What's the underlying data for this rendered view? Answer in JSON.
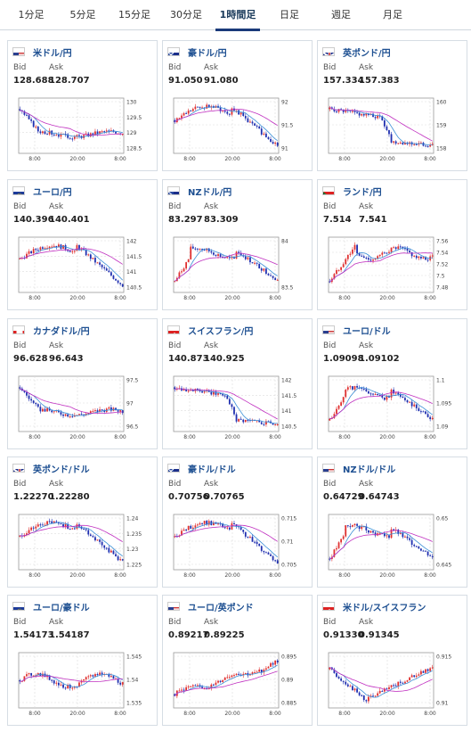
{
  "tabs": [
    {
      "label": "1分足",
      "active": false
    },
    {
      "label": "5分足",
      "active": false
    },
    {
      "label": "15分足",
      "active": false
    },
    {
      "label": "30分足",
      "active": false
    },
    {
      "label": "1時間足",
      "active": true
    },
    {
      "label": "日足",
      "active": false
    },
    {
      "label": "週足",
      "active": false
    },
    {
      "label": "月足",
      "active": false
    }
  ],
  "colors": {
    "accent": "#1a3a7a",
    "link": "#1d4f91",
    "up": "#e03030",
    "down": "#1f2fb0",
    "ma_short": "#3a8fd6",
    "ma_long": "#c030c0"
  },
  "bid_label": "Bid",
  "ask_label": "Ask",
  "x_ticks": [
    "8:00",
    "20:00",
    "8:00"
  ],
  "cards": [
    {
      "pair": "米ドル/円",
      "flag": "us",
      "bid": "128.688",
      "ask": "128.707",
      "yticks": [
        "130",
        "129.5",
        "129",
        "128.5"
      ],
      "trend": "fall-flat"
    },
    {
      "pair": "豪ドル/円",
      "flag": "au",
      "bid": "91.050",
      "ask": "91.080",
      "yticks": [
        "92",
        "91.5",
        "91"
      ],
      "trend": "hump-fall"
    },
    {
      "pair": "英ポンド/円",
      "flag": "gb",
      "bid": "157.334",
      "ask": "157.383",
      "yticks": [
        "160",
        "159",
        "158"
      ],
      "trend": "flat-fall"
    },
    {
      "pair": "ユーロ/円",
      "flag": "eu",
      "bid": "140.396",
      "ask": "140.401",
      "yticks": [
        "142",
        "141.5",
        "141",
        "140.5"
      ],
      "trend": "hump-fall"
    },
    {
      "pair": "NZドル/円",
      "flag": "nz",
      "bid": "83.297",
      "ask": "83.309",
      "yticks": [
        "84",
        "83.5"
      ],
      "trend": "rise-fall"
    },
    {
      "pair": "ランド/円",
      "flag": "za",
      "bid": "7.514",
      "ask": "7.541",
      "yticks": [
        "7.56",
        "7.54",
        "7.52",
        "7.5",
        "7.48"
      ],
      "trend": "rise-flat"
    },
    {
      "pair": "カナダドル/円",
      "flag": "ca",
      "bid": "96.628",
      "ask": "96.643",
      "yticks": [
        "97.5",
        "97",
        "96.5"
      ],
      "trend": "fall-flat"
    },
    {
      "pair": "スイスフラン/円",
      "flag": "ch",
      "bid": "140.873",
      "ask": "140.925",
      "yticks": [
        "142",
        "141.5",
        "141",
        "140.5"
      ],
      "trend": "flat-fall"
    },
    {
      "pair": "ユーロ/ドル",
      "flag": "us",
      "bid": "1.09098",
      "ask": "1.09102",
      "yticks": [
        "1.1",
        "1.095",
        "1.09"
      ],
      "trend": "rise-fall"
    },
    {
      "pair": "英ポンド/ドル",
      "flag": "gb",
      "bid": "1.22270",
      "ask": "1.22280",
      "yticks": [
        "1.24",
        "1.235",
        "1.23",
        "1.225"
      ],
      "trend": "hump-fall"
    },
    {
      "pair": "豪ドル/ドル",
      "flag": "au",
      "bid": "0.70756",
      "ask": "0.70765",
      "yticks": [
        "0.715",
        "0.71",
        "0.705"
      ],
      "trend": "hump-fall"
    },
    {
      "pair": "NZドル/ドル",
      "flag": "us",
      "bid": "0.64729",
      "ask": "0.64743",
      "yticks": [
        "0.65",
        "0.645"
      ],
      "trend": "rise-fall"
    },
    {
      "pair": "ユーロ/豪ドル",
      "flag": "eu",
      "bid": "1.54173",
      "ask": "1.54187",
      "yticks": [
        "1.545",
        "1.54",
        "1.535"
      ],
      "trend": "flat"
    },
    {
      "pair": "ユーロ/英ポンド",
      "flag": "us",
      "bid": "0.89217",
      "ask": "0.89225",
      "yticks": [
        "0.895",
        "0.89",
        "0.885"
      ],
      "trend": "rise"
    },
    {
      "pair": "米ドル/スイスフラン",
      "flag": "ch",
      "bid": "0.91330",
      "ask": "0.91345",
      "yticks": [
        "0.915",
        "0.91"
      ],
      "trend": "dip-rise"
    }
  ]
}
